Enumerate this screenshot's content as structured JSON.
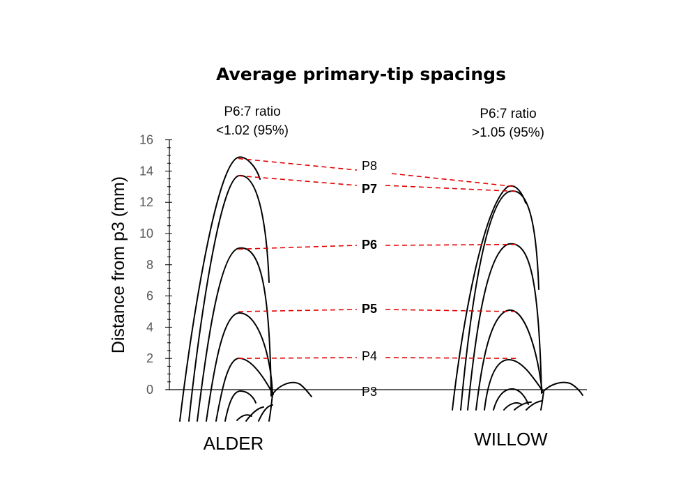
{
  "title": "Average primary-tip spacings",
  "y_axis": {
    "label": "Distance from p3 (mm)",
    "min": 0,
    "max": 16,
    "major_step": 2,
    "minor_step": 0.5,
    "ticks": [
      "0",
      "2",
      "4",
      "6",
      "8",
      "10",
      "12",
      "14",
      "16"
    ]
  },
  "primaries": [
    {
      "label": "P8",
      "bold": false
    },
    {
      "label": "P7",
      "bold": true
    },
    {
      "label": "P6",
      "bold": true
    },
    {
      "label": "P5",
      "bold": true
    },
    {
      "label": "P4",
      "bold": false
    },
    {
      "label": "P3",
      "bold": false
    }
  ],
  "wings": [
    {
      "name": "ALDER",
      "ratio_line1": "P6:7 ratio",
      "ratio_line2": "<1.02 (95%)",
      "tips": {
        "P3": 0,
        "P4": 2,
        "P5": 5,
        "P6": 9,
        "P7": 13.7,
        "P8": 14.8
      }
    },
    {
      "name": "WILLOW",
      "ratio_line1": "P6:7 ratio",
      "ratio_line2": ">1.05 (95%)",
      "tips": {
        "P3": 0,
        "P4": 2,
        "P5": 5,
        "P6": 9.3,
        "P7": 12.7,
        "P8": 13
      }
    }
  ],
  "colors": {
    "guide_lines": "#e00000",
    "tick_labels": "#595959",
    "feathers": "#000000"
  }
}
